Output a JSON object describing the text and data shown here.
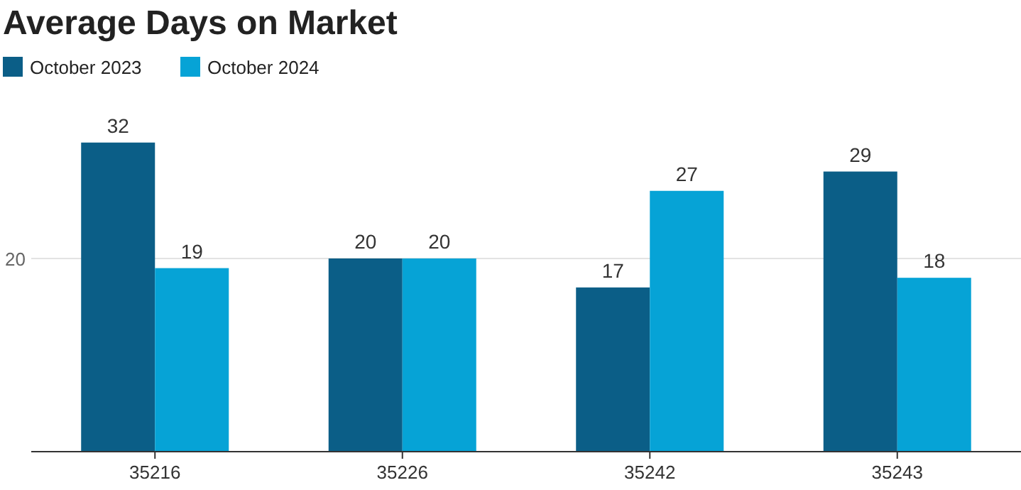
{
  "chart_data": {
    "type": "bar",
    "title": "Average Days on Market",
    "categories": [
      "35216",
      "35226",
      "35242",
      "35243"
    ],
    "series": [
      {
        "name": "October 2023",
        "color": "#0b5e87",
        "values": [
          32,
          20,
          17,
          29
        ]
      },
      {
        "name": "October 2024",
        "color": "#06a3d6",
        "values": [
          19,
          20,
          27,
          18
        ]
      }
    ],
    "ref_lines": [
      {
        "axis": "y",
        "value": 20,
        "label": "20",
        "color": "#e3e3e3"
      }
    ],
    "legend": "top left",
    "data_labels": true
  }
}
